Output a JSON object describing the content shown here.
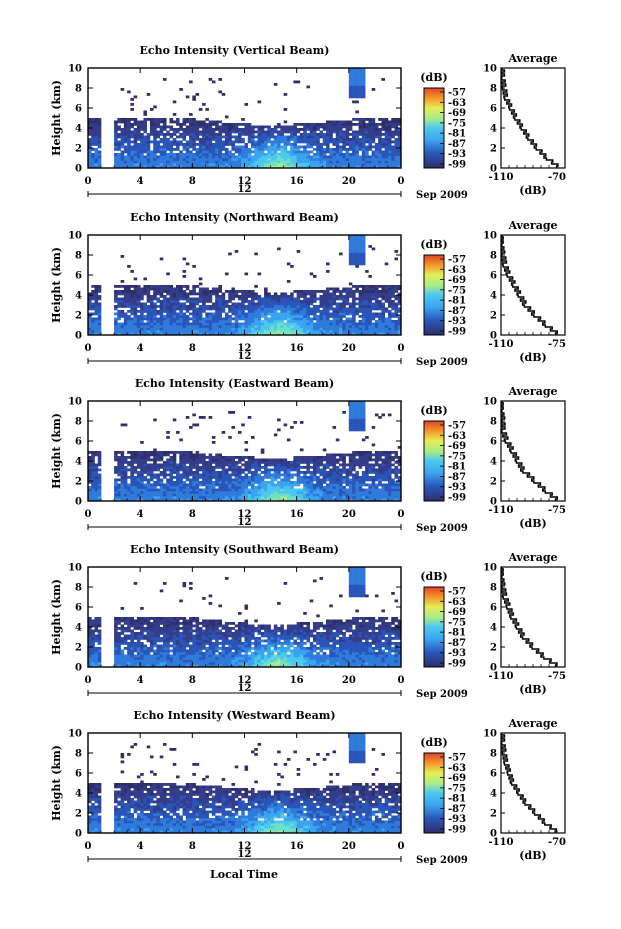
{
  "colors": {
    "background": "#ffffff",
    "axis": "#000000",
    "colormap": [
      "#2e2f6b",
      "#343c8c",
      "#2a55b8",
      "#2f7bdc",
      "#3ba4ef",
      "#4cc8ee",
      "#6fe0c8",
      "#a9ec8a",
      "#e5ee55",
      "#f8c93a",
      "#f59227",
      "#e0452a"
    ]
  },
  "panels": [
    {
      "id": "vertical",
      "title": "Echo Intensity (Vertical Beam)",
      "ylabel": "Height (km)",
      "x_ticks": [
        "0",
        "4",
        "8",
        "12",
        "16",
        "20",
        "0"
      ],
      "y_ticks": [
        "0",
        "2",
        "4",
        "6",
        "8",
        "10"
      ],
      "date_label": "12",
      "month_label": "Sep 2009",
      "colorbar": {
        "unit": "(dB)",
        "ticks": [
          "-57",
          "-63",
          "-69",
          "-75",
          "-81",
          "-87",
          "-93",
          "-99"
        ]
      },
      "average": {
        "title": "Average",
        "xlabel": "(dB)",
        "x_ticks": [
          "-110",
          "-70"
        ],
        "y_ticks": [
          "0",
          "2",
          "4",
          "6",
          "8",
          "10"
        ]
      }
    },
    {
      "id": "northward",
      "title": "Echo Intensity (Northward Beam)",
      "ylabel": "Height (km)",
      "x_ticks": [
        "0",
        "4",
        "8",
        "12",
        "16",
        "20",
        "0"
      ],
      "y_ticks": [
        "0",
        "2",
        "4",
        "6",
        "8",
        "10"
      ],
      "date_label": "12",
      "month_label": "Sep 2009",
      "colorbar": {
        "unit": "(dB)",
        "ticks": [
          "-57",
          "-63",
          "-69",
          "-75",
          "-81",
          "-87",
          "-93",
          "-99"
        ]
      },
      "average": {
        "title": "Average",
        "xlabel": "(dB)",
        "x_ticks": [
          "-110",
          "-75"
        ],
        "y_ticks": [
          "0",
          "2",
          "4",
          "6",
          "8",
          "10"
        ]
      }
    },
    {
      "id": "eastward",
      "title": "Echo Intensity (Eastward Beam)",
      "ylabel": "Height (km)",
      "x_ticks": [
        "0",
        "4",
        "8",
        "12",
        "16",
        "20",
        "0"
      ],
      "y_ticks": [
        "0",
        "2",
        "4",
        "6",
        "8",
        "10"
      ],
      "date_label": "12",
      "month_label": "Sep 2009",
      "colorbar": {
        "unit": "(dB)",
        "ticks": [
          "-57",
          "-63",
          "-69",
          "-75",
          "-81",
          "-87",
          "-93",
          "-99"
        ]
      },
      "average": {
        "title": "Average",
        "xlabel": "(dB)",
        "x_ticks": [
          "-110",
          "-75"
        ],
        "y_ticks": [
          "0",
          "2",
          "4",
          "6",
          "8",
          "10"
        ]
      }
    },
    {
      "id": "southward",
      "title": "Echo Intensity (Southward Beam)",
      "ylabel": "Height (km)",
      "x_ticks": [
        "0",
        "4",
        "8",
        "12",
        "16",
        "20",
        "0"
      ],
      "y_ticks": [
        "0",
        "2",
        "4",
        "6",
        "8",
        "10"
      ],
      "date_label": "12",
      "month_label": "Sep 2009",
      "colorbar": {
        "unit": "(dB)",
        "ticks": [
          "-57",
          "-63",
          "-69",
          "-75",
          "-81",
          "-87",
          "-93",
          "-99"
        ]
      },
      "average": {
        "title": "Average",
        "xlabel": "(dB)",
        "x_ticks": [
          "-110",
          "-75"
        ],
        "y_ticks": [
          "0",
          "2",
          "4",
          "6",
          "8",
          "10"
        ]
      }
    },
    {
      "id": "westward",
      "title": "Echo Intensity (Westward Beam)",
      "ylabel": "Height (km)",
      "x_ticks": [
        "0",
        "4",
        "8",
        "12",
        "16",
        "20",
        "0"
      ],
      "y_ticks": [
        "0",
        "2",
        "4",
        "6",
        "8",
        "10"
      ],
      "date_label": "12",
      "month_label": "Sep 2009",
      "colorbar": {
        "unit": "(dB)",
        "ticks": [
          "-57",
          "-63",
          "-69",
          "-75",
          "-81",
          "-87",
          "-93",
          "-99"
        ]
      },
      "average": {
        "title": "Average",
        "xlabel": "(dB)",
        "x_ticks": [
          "-110",
          "-70"
        ],
        "y_ticks": [
          "0",
          "2",
          "4",
          "6",
          "8",
          "10"
        ]
      }
    }
  ],
  "xaxis_label": "Local Time",
  "chart_data": [
    {
      "type": "heatmap",
      "title": "Echo Intensity (Vertical Beam)",
      "xlabel": "Local Time",
      "ylabel": "Height (km)",
      "xlim": [
        0,
        24
      ],
      "ylim": [
        0,
        10
      ],
      "colorbar_label": "(dB)",
      "colorbar_range": [
        -99,
        -57
      ],
      "features": {
        "data_gap_hours": [
          1,
          2
        ],
        "convective_peak_hour": 14.5
      },
      "average_profile": {
        "xlim": [
          -110,
          -70
        ],
        "heights": [
          0,
          1,
          2,
          3,
          4,
          5,
          6,
          7,
          8,
          9,
          10
        ],
        "values": [
          -74,
          -82,
          -88,
          -93,
          -97,
          -101,
          -104,
          -107,
          -108,
          -109,
          -109
        ]
      }
    },
    {
      "type": "heatmap",
      "title": "Echo Intensity (Northward Beam)",
      "xlabel": "Local Time",
      "ylabel": "Height (km)",
      "xlim": [
        0,
        24
      ],
      "ylim": [
        0,
        10
      ],
      "colorbar_label": "(dB)",
      "colorbar_range": [
        -99,
        -57
      ],
      "features": {
        "data_gap_hours": [
          1,
          2
        ],
        "convective_peak_hour": 14.5
      },
      "average_profile": {
        "xlim": [
          -110,
          -75
        ],
        "heights": [
          0,
          1,
          2,
          3,
          4,
          5,
          6,
          7,
          8,
          9,
          10
        ],
        "values": [
          -79,
          -86,
          -92,
          -97,
          -100,
          -103,
          -106,
          -108,
          -109,
          -110,
          -110
        ]
      }
    },
    {
      "type": "heatmap",
      "title": "Echo Intensity (Eastward Beam)",
      "xlabel": "Local Time",
      "ylabel": "Height (km)",
      "xlim": [
        0,
        24
      ],
      "ylim": [
        0,
        10
      ],
      "colorbar_label": "(dB)",
      "colorbar_range": [
        -99,
        -57
      ],
      "features": {
        "data_gap_hours": [
          1,
          2
        ],
        "convective_peak_hour": 14.5
      },
      "average_profile": {
        "xlim": [
          -110,
          -75
        ],
        "heights": [
          0,
          1,
          2,
          3,
          4,
          5,
          6,
          7,
          8,
          9,
          10
        ],
        "values": [
          -79,
          -86,
          -92,
          -98,
          -101,
          -104,
          -107,
          -109,
          -109,
          -110,
          -110
        ]
      }
    },
    {
      "type": "heatmap",
      "title": "Echo Intensity (Southward Beam)",
      "xlabel": "Local Time",
      "ylabel": "Height (km)",
      "xlim": [
        0,
        24
      ],
      "ylim": [
        0,
        10
      ],
      "colorbar_label": "(dB)",
      "colorbar_range": [
        -99,
        -57
      ],
      "features": {
        "data_gap_hours": [
          1,
          2
        ],
        "convective_peak_hour": 14.5
      },
      "average_profile": {
        "xlim": [
          -110,
          -75
        ],
        "heights": [
          0,
          1,
          2,
          3,
          4,
          5,
          6,
          7,
          8,
          9,
          10
        ],
        "values": [
          -79,
          -87,
          -93,
          -98,
          -101,
          -104,
          -106,
          -108,
          -109,
          -110,
          -110
        ]
      }
    },
    {
      "type": "heatmap",
      "title": "Echo Intensity (Westward Beam)",
      "xlabel": "Local Time",
      "ylabel": "Height (km)",
      "xlim": [
        0,
        24
      ],
      "ylim": [
        0,
        10
      ],
      "colorbar_label": "(dB)",
      "colorbar_range": [
        -99,
        -57
      ],
      "features": {
        "data_gap_hours": [
          1,
          2
        ],
        "convective_peak_hour": 14.5
      },
      "average_profile": {
        "xlim": [
          -110,
          -70
        ],
        "heights": [
          0,
          1,
          2,
          3,
          4,
          5,
          6,
          7,
          8,
          9,
          10
        ],
        "values": [
          -75,
          -83,
          -89,
          -95,
          -99,
          -103,
          -105,
          -107,
          -108,
          -109,
          -109
        ]
      }
    }
  ]
}
